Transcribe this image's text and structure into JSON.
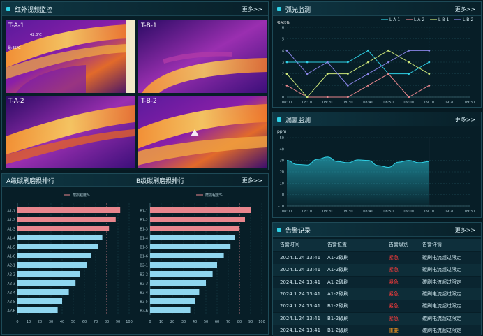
{
  "panels": {
    "ir": {
      "title": "红外视频监控",
      "more": "更多>>"
    },
    "arc": {
      "title": "弧光监测",
      "more": "更多>>"
    },
    "hydrogen": {
      "title": "漏氢监测",
      "more": "更多>>"
    },
    "wear": {
      "title_a": "A级碳刷磨损排行",
      "title_b": "B级碳刷磨损排行",
      "more": "更多>>",
      "legend": "磨损程度%"
    },
    "alarm": {
      "title": "告警记录",
      "more": "更多>>"
    }
  },
  "thermal": {
    "cameras": [
      {
        "label": "T-A-1",
        "marker1": "42.3℃",
        "marker2": "最:35℃"
      },
      {
        "label": "T-B-1"
      },
      {
        "label": "T-A-2"
      },
      {
        "label": "T-B-2"
      }
    ]
  },
  "colors": {
    "accent": "#2fd1e6",
    "bar_red": "#e8868d",
    "bar_blue": "#8fd6ef",
    "urgent": "#ff3b3b",
    "important": "#ff9a1f"
  },
  "chart_data": [
    {
      "type": "line",
      "title": "",
      "ylabel": "弧光次数",
      "ylim": [
        0,
        6
      ],
      "categories": [
        "08:00",
        "08:10",
        "08:20",
        "08:30",
        "08:40",
        "08:50",
        "09:00",
        "09:10",
        "09:20",
        "09:30"
      ],
      "series": [
        {
          "name": "L-A-1",
          "color": "#2fd1e6",
          "values": [
            3,
            3,
            3,
            3,
            4,
            2,
            2,
            3,
            null,
            null
          ]
        },
        {
          "name": "L-A-2",
          "color": "#e8868d",
          "values": [
            1,
            0,
            0,
            0,
            1,
            2,
            0,
            1,
            null,
            null
          ]
        },
        {
          "name": "L-B-1",
          "color": "#cde77a",
          "values": [
            2,
            0,
            2,
            2,
            3,
            4,
            3,
            2,
            null,
            null
          ]
        },
        {
          "name": "L-B-2",
          "color": "#8a85e8",
          "values": [
            4,
            2,
            3,
            1,
            2,
            3,
            4,
            4,
            null,
            null
          ]
        }
      ]
    },
    {
      "type": "area",
      "title": "",
      "ylabel": "ppm",
      "ylim": [
        -10,
        50
      ],
      "yticks": [
        -10,
        0,
        10,
        20,
        30,
        40,
        50
      ],
      "categories": [
        "08:00",
        "08:10",
        "08:20",
        "08:30",
        "08:40",
        "08:50",
        "09:00",
        "09:10",
        "09:20",
        "09:30"
      ],
      "series": [
        {
          "name": "",
          "color": "#2fd1e6",
          "values": [
            30,
            26,
            33,
            28,
            30,
            24,
            30,
            29,
            null,
            null
          ]
        }
      ]
    },
    {
      "type": "bar",
      "orientation": "horizontal",
      "xlim": [
        0,
        100
      ],
      "xticks": [
        0,
        10,
        20,
        30,
        40,
        50,
        60,
        70,
        80,
        90,
        100
      ],
      "categories": [
        "A1-1",
        "A1-2",
        "A1-3",
        "A1-4",
        "A1-5",
        "A1-6",
        "A2-1",
        "A2-2",
        "A2-3",
        "A2-4",
        "A2-5",
        "A2-6"
      ],
      "values": [
        92,
        88,
        82,
        76,
        72,
        66,
        62,
        56,
        52,
        46,
        40,
        36
      ],
      "threshold": 80
    },
    {
      "type": "bar",
      "orientation": "horizontal",
      "xlim": [
        0,
        100
      ],
      "xticks": [
        0,
        10,
        20,
        30,
        40,
        50,
        60,
        70,
        80,
        90,
        100
      ],
      "categories": [
        "B1-1",
        "B1-2",
        "B1-3",
        "B1-4",
        "B1-5",
        "B1-6",
        "B2-1",
        "B2-2",
        "B2-3",
        "B2-4",
        "B2-5",
        "B2-6"
      ],
      "values": [
        90,
        85,
        80,
        76,
        72,
        66,
        60,
        56,
        50,
        44,
        40,
        36
      ],
      "threshold": 80
    }
  ],
  "alarms": {
    "headers": [
      "告警时间",
      "告警位置",
      "告警级别",
      "告警详情"
    ],
    "rows": [
      {
        "time": "2024.1.24 13:41",
        "location": "A1-2碳刷",
        "level": "紧急",
        "level_type": "urgent",
        "detail": "碳刷电流超过限定"
      },
      {
        "time": "2024.1.24 13:41",
        "location": "A1-2碳刷",
        "level": "紧急",
        "level_type": "urgent",
        "detail": "碳刷电流超过限定"
      },
      {
        "time": "2024.1.24 13:41",
        "location": "A1-2碳刷",
        "level": "紧急",
        "level_type": "urgent",
        "detail": "碳刷电流超过限定"
      },
      {
        "time": "2024.1.24 13:41",
        "location": "A1-2碳刷",
        "level": "紧急",
        "level_type": "urgent",
        "detail": "碳刷电流超过限定"
      },
      {
        "time": "2024.1.24 13:41",
        "location": "B1-2碳刷",
        "level": "紧急",
        "level_type": "urgent",
        "detail": "碳刷电流超过限定"
      },
      {
        "time": "2024.1.24 13:41",
        "location": "B1-2碳刷",
        "level": "紧急",
        "level_type": "urgent",
        "detail": "碳刷电流超过限定"
      },
      {
        "time": "2024.1.24 13:41",
        "location": "B1-2碳刷",
        "level": "重要",
        "level_type": "important",
        "detail": "碳刷电流超过限定"
      }
    ]
  }
}
